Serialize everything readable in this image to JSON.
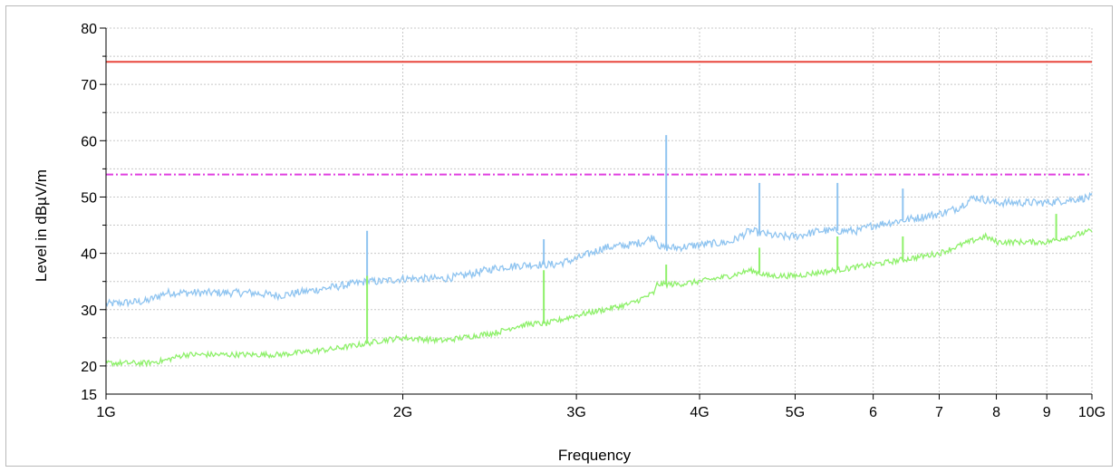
{
  "chart_data": {
    "type": "line",
    "title": "",
    "xlabel": "Frequency",
    "ylabel": "Level in dBµV/m",
    "x_scale": "log",
    "x_unit": "GHz",
    "xlim": [
      1,
      10
    ],
    "ylim": [
      15,
      80
    ],
    "grid": true,
    "legend": "none",
    "x_ticks": [
      {
        "value": 1,
        "label": "1G"
      },
      {
        "value": 2,
        "label": "2G"
      },
      {
        "value": 3,
        "label": "3G"
      },
      {
        "value": 4,
        "label": "4G"
      },
      {
        "value": 5,
        "label": "5G"
      },
      {
        "value": 6,
        "label": "6"
      },
      {
        "value": 7,
        "label": "7"
      },
      {
        "value": 8,
        "label": "8"
      },
      {
        "value": 9,
        "label": "9"
      },
      {
        "value": 10,
        "label": "10G"
      }
    ],
    "y_ticks": [
      15,
      20,
      30,
      40,
      50,
      60,
      70,
      80
    ],
    "limit_lines": [
      {
        "level": 74,
        "color": "#e8463c",
        "style": "solid"
      },
      {
        "level": 54,
        "color": "#e040e0",
        "style": "dash-dot"
      }
    ],
    "series": [
      {
        "color": "#8fc4f0",
        "x": [
          1.0,
          1.1,
          1.15,
          1.2,
          1.3,
          1.4,
          1.5,
          1.7,
          1.84,
          1.9,
          2.0,
          2.1,
          2.2,
          2.3,
          2.5,
          2.7,
          2.85,
          3.0,
          3.2,
          3.4,
          3.5,
          3.6,
          3.65,
          3.8,
          4.0,
          4.3,
          4.5,
          4.8,
          5.0,
          5.3,
          5.5,
          5.8,
          6.0,
          6.5,
          7.0,
          7.3,
          7.6,
          8.0,
          8.5,
          9.0,
          9.5,
          10.0
        ],
        "y": [
          31,
          31.5,
          33,
          33,
          33,
          33,
          32.5,
          34,
          35,
          35,
          35.5,
          35.5,
          35.5,
          36,
          37.5,
          38,
          38,
          39,
          41,
          41.5,
          42,
          43,
          41,
          41,
          41.5,
          42,
          44,
          43,
          43,
          44,
          44,
          44,
          45,
          46,
          47,
          48,
          50,
          49,
          49,
          49,
          49.5,
          50
        ],
        "spikes": [
          {
            "x": 1.84,
            "y": 44
          },
          {
            "x": 2.78,
            "y": 42.5
          },
          {
            "x": 3.7,
            "y": 61
          },
          {
            "x": 4.6,
            "y": 52.5
          },
          {
            "x": 5.52,
            "y": 52.5
          },
          {
            "x": 6.43,
            "y": 51.5
          }
        ]
      },
      {
        "color": "#8ef06a",
        "x": [
          1.0,
          1.1,
          1.15,
          1.2,
          1.3,
          1.5,
          1.7,
          1.84,
          1.9,
          2.0,
          2.2,
          2.5,
          2.6,
          2.7,
          2.8,
          3.0,
          3.2,
          3.4,
          3.5,
          3.6,
          3.62,
          3.8,
          4.0,
          4.3,
          4.5,
          4.7,
          5.0,
          5.5,
          6.0,
          6.5,
          7.0,
          7.5,
          7.8,
          8.0,
          8.5,
          9.0,
          9.5,
          10.0
        ],
        "y": [
          20.5,
          20.5,
          21,
          22,
          22,
          22,
          23,
          24,
          24.5,
          25,
          24.5,
          26,
          27,
          27.5,
          27.5,
          29,
          30,
          31,
          32,
          33,
          34.5,
          34.5,
          35,
          36,
          37,
          36,
          36,
          37,
          38,
          39,
          40,
          42,
          43,
          42,
          42,
          42,
          43,
          44
        ],
        "spikes": [
          {
            "x": 1.84,
            "y": 36
          },
          {
            "x": 2.78,
            "y": 37
          },
          {
            "x": 3.7,
            "y": 38
          },
          {
            "x": 4.6,
            "y": 41
          },
          {
            "x": 5.52,
            "y": 43
          },
          {
            "x": 6.43,
            "y": 43
          },
          {
            "x": 9.2,
            "y": 47
          }
        ]
      }
    ]
  }
}
